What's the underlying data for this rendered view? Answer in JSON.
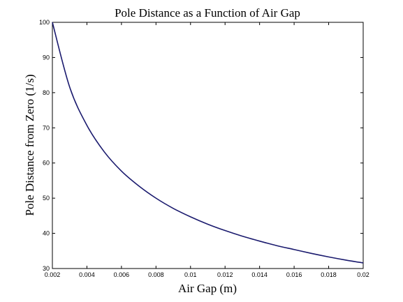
{
  "chart_data": {
    "type": "line",
    "title": "Pole Distance as a Function of Air Gap",
    "xlabel": "Air Gap (m)",
    "ylabel": "Pole Distance from Zero (1/s)",
    "xlim": [
      0.002,
      0.02
    ],
    "ylim": [
      30,
      100
    ],
    "xticks": [
      0.002,
      0.004,
      0.006,
      0.008,
      0.01,
      0.012,
      0.014,
      0.016,
      0.018,
      0.02
    ],
    "xtick_labels": [
      "0.002",
      "0.004",
      "0.006",
      "0.008",
      "0.01",
      "0.012",
      "0.014",
      "0.016",
      "0.018",
      "0.02"
    ],
    "yticks": [
      30,
      40,
      50,
      60,
      70,
      80,
      90,
      100
    ],
    "ytick_labels": [
      "30",
      "40",
      "50",
      "60",
      "70",
      "80",
      "90",
      "100"
    ],
    "grid": false,
    "line_color": "#1a1a6e",
    "series": [
      {
        "x": [
          0.002,
          0.003,
          0.004,
          0.005,
          0.006,
          0.007,
          0.008,
          0.009,
          0.01,
          0.011,
          0.012,
          0.013,
          0.014,
          0.015,
          0.016,
          0.017,
          0.018,
          0.019,
          0.02
        ],
        "values": [
          100,
          81.6,
          70.7,
          63.2,
          57.7,
          53.5,
          50.0,
          47.1,
          44.7,
          42.6,
          40.8,
          39.2,
          37.8,
          36.5,
          35.4,
          34.3,
          33.3,
          32.4,
          31.6
        ]
      }
    ]
  }
}
